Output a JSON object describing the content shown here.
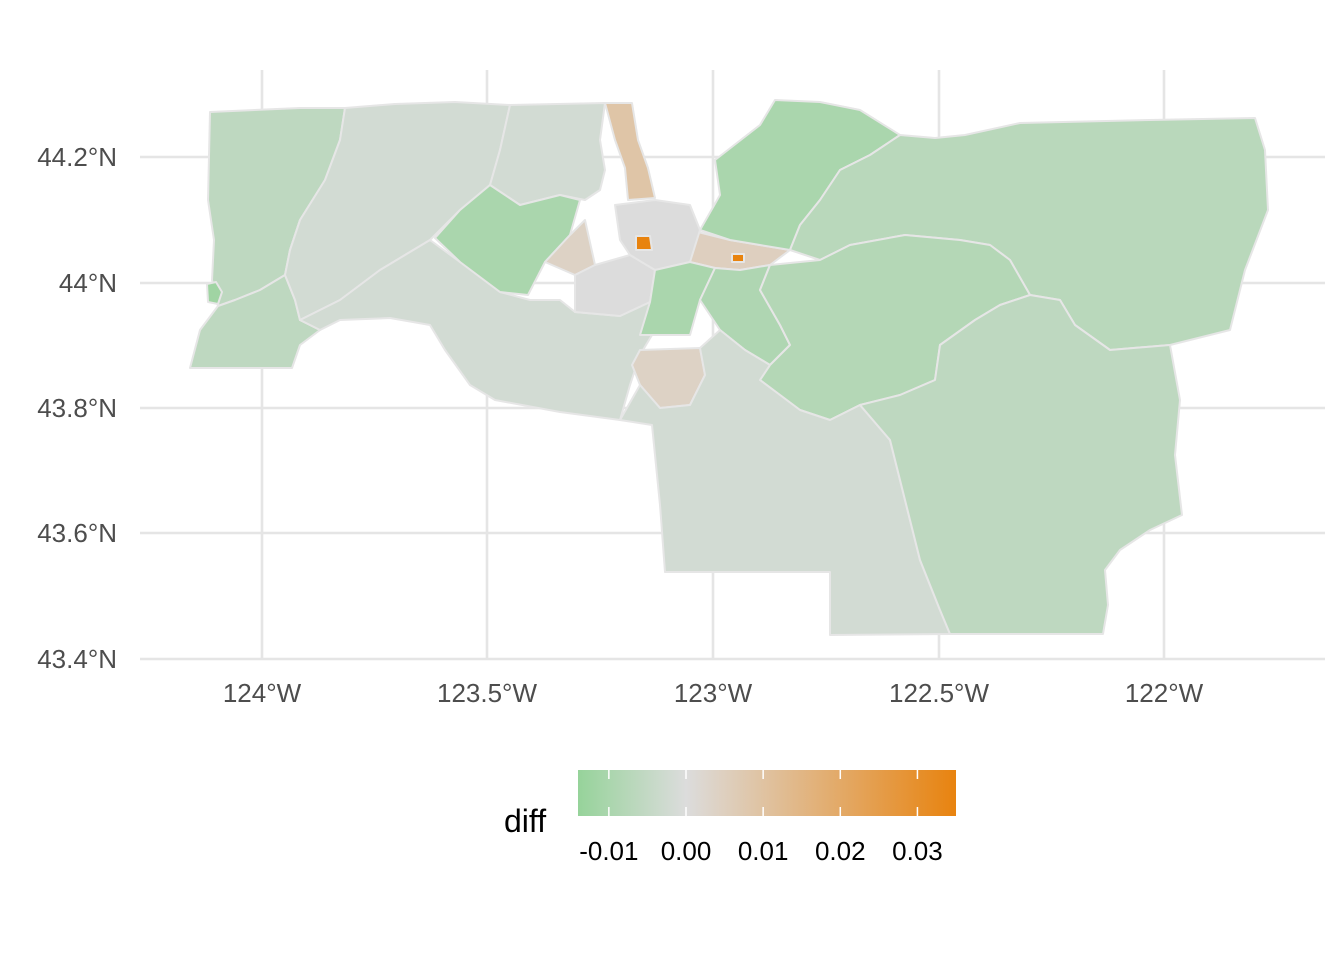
{
  "chart_data": {
    "type": "choropleth",
    "title": "",
    "xlabel": "",
    "ylabel": "",
    "x_ticks": [
      "124°W",
      "123.5°W",
      "123°W",
      "122.5°W",
      "122°W"
    ],
    "y_ticks": [
      "43.4°N",
      "43.6°N",
      "43.8°N",
      "44°N",
      "44.2°N"
    ],
    "x_range_lon": [
      -124.28,
      -121.65
    ],
    "y_range_lat": [
      43.38,
      44.3
    ],
    "grid": true,
    "legend": {
      "title": "diff",
      "position": "bottom",
      "type": "colorbar",
      "limits": [
        -0.014,
        0.035
      ],
      "ticks": [
        "-0.01",
        "0.00",
        "0.01",
        "0.02",
        "0.03"
      ],
      "colors": {
        "low": "#96d39a",
        "mid": "#dcdcdc",
        "high": "#e8830f"
      }
    },
    "region_values": [
      {
        "id": "coast-west",
        "value": -0.006
      },
      {
        "id": "coast-inlet",
        "value": -0.012
      },
      {
        "id": "coast-south",
        "value": -0.006
      },
      {
        "id": "northwest-hills",
        "value": -0.002
      },
      {
        "id": "north-central",
        "value": -0.002
      },
      {
        "id": "west-central",
        "value": -0.002
      },
      {
        "id": "fern-ridge",
        "value": -0.01
      },
      {
        "id": "sw-hills",
        "value": 0.004
      },
      {
        "id": "eugene-core",
        "value": 0.0
      },
      {
        "id": "coburg-strip",
        "value": 0.009
      },
      {
        "id": "urban-hotspot",
        "value": 0.035
      },
      {
        "id": "east-hotspot",
        "value": 0.035
      },
      {
        "id": "springfield",
        "value": 0.005
      },
      {
        "id": "mckenzie-north",
        "value": -0.01
      },
      {
        "id": "northeast-forest",
        "value": -0.007
      },
      {
        "id": "south-central-forest",
        "value": -0.008
      },
      {
        "id": "pleasant-hill",
        "value": -0.01
      },
      {
        "id": "lowell",
        "value": -0.009
      },
      {
        "id": "creswell",
        "value": 0.004
      },
      {
        "id": "cottage-grove",
        "value": 0.006
      },
      {
        "id": "south-center",
        "value": -0.002
      },
      {
        "id": "southeast-forest",
        "value": -0.006
      }
    ]
  }
}
